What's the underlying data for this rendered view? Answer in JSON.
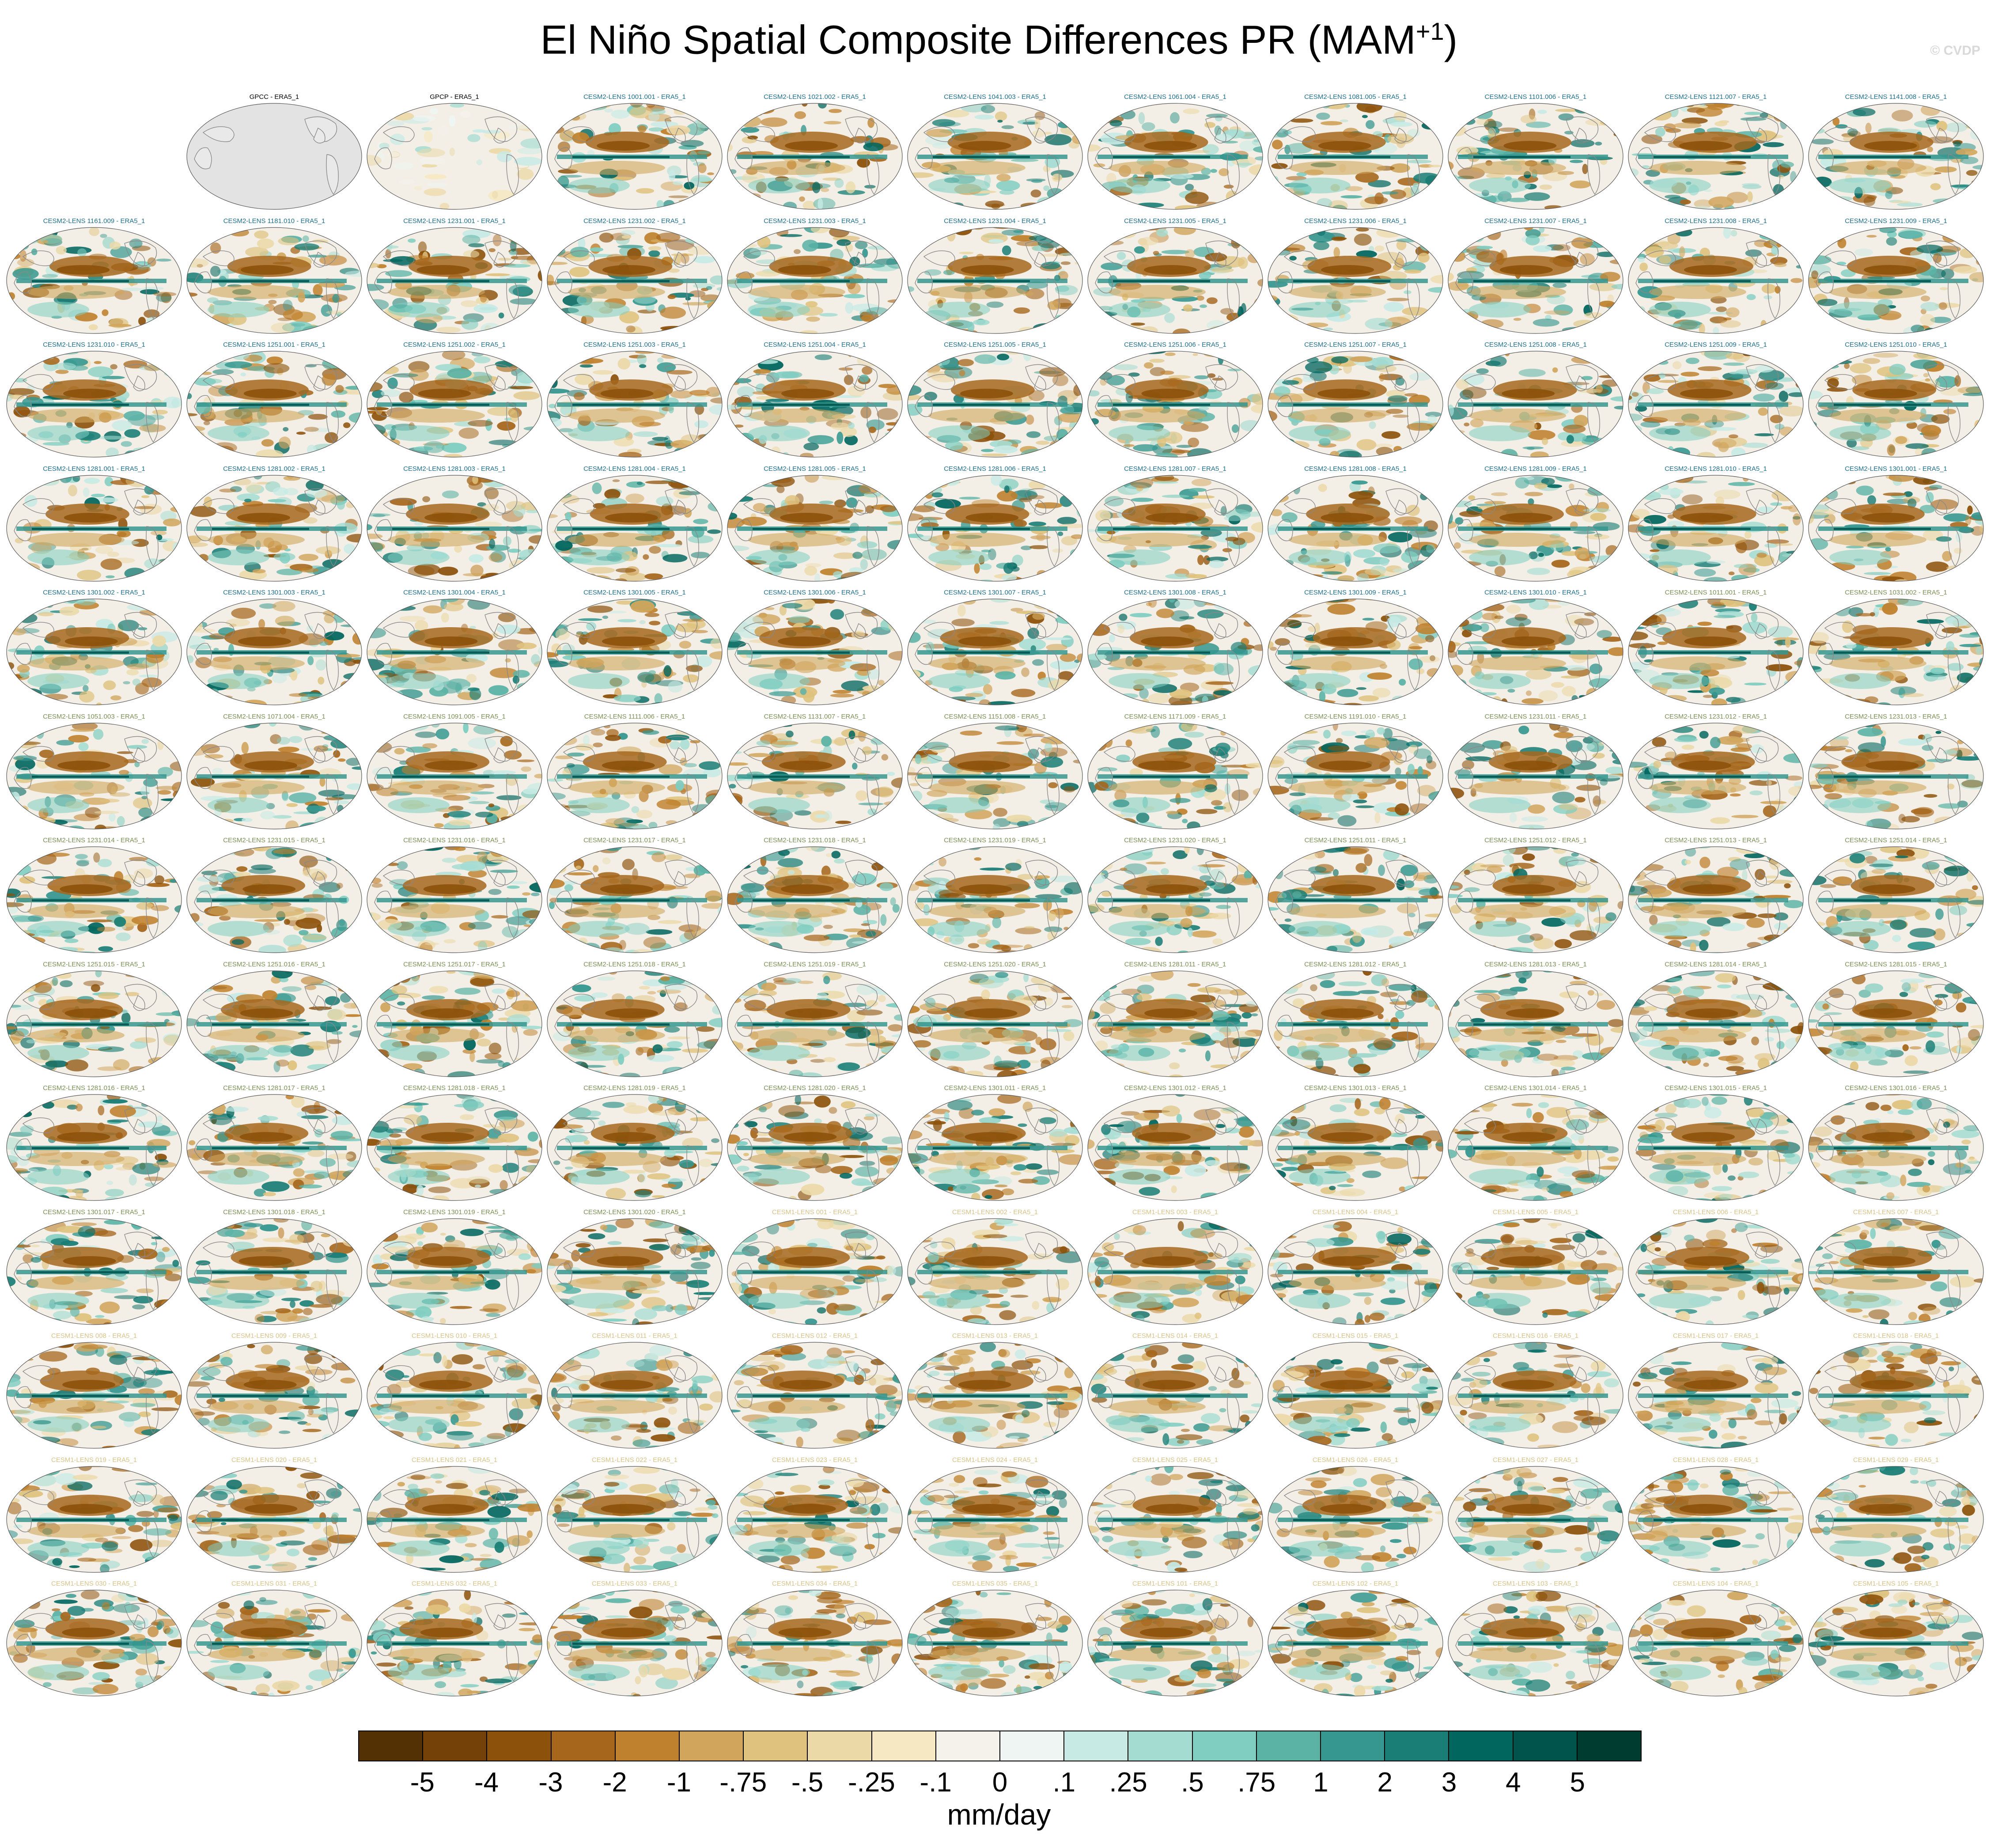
{
  "title": "El Niño Spatial Composite Differences PR (MAM",
  "title_sup": "+1",
  "title_close": ")",
  "watermark": "© CVDP",
  "colors": {
    "obs_label": "#000000",
    "cesm2_label": "#1f6f8b",
    "cesm2_alt_label": "#7a8f55",
    "cesm1_label": "#d7c38a",
    "land": "#e3e3e3",
    "ocean_neutral": "#f3efe6"
  },
  "panels": [
    {
      "label": "GPCC - ERA5_1",
      "group": "obs_land"
    },
    {
      "label": "GPCP - ERA5_1",
      "group": "obs_pale"
    },
    {
      "label": "CESM2-LENS 1001.001 - ERA5_1",
      "group": "cesm2"
    },
    {
      "label": "CESM2-LENS 1021.002 - ERA5_1",
      "group": "cesm2"
    },
    {
      "label": "CESM2-LENS 1041.003 - ERA5_1",
      "group": "cesm2"
    },
    {
      "label": "CESM2-LENS 1061.004 - ERA5_1",
      "group": "cesm2"
    },
    {
      "label": "CESM2-LENS 1081.005 - ERA5_1",
      "group": "cesm2"
    },
    {
      "label": "CESM2-LENS 1101.006 - ERA5_1",
      "group": "cesm2"
    },
    {
      "label": "CESM2-LENS 1121.007 - ERA5_1",
      "group": "cesm2"
    },
    {
      "label": "CESM2-LENS 1141.008 - ERA5_1",
      "group": "cesm2"
    },
    {
      "label": "CESM2-LENS 1161.009 - ERA5_1",
      "group": "cesm2"
    },
    {
      "label": "CESM2-LENS 1181.010 - ERA5_1",
      "group": "cesm2"
    },
    {
      "label": "CESM2-LENS 1231.001 - ERA5_1",
      "group": "cesm2"
    },
    {
      "label": "CESM2-LENS 1231.002 - ERA5_1",
      "group": "cesm2"
    },
    {
      "label": "CESM2-LENS 1231.003 - ERA5_1",
      "group": "cesm2"
    },
    {
      "label": "CESM2-LENS 1231.004 - ERA5_1",
      "group": "cesm2"
    },
    {
      "label": "CESM2-LENS 1231.005 - ERA5_1",
      "group": "cesm2"
    },
    {
      "label": "CESM2-LENS 1231.006 - ERA5_1",
      "group": "cesm2"
    },
    {
      "label": "CESM2-LENS 1231.007 - ERA5_1",
      "group": "cesm2"
    },
    {
      "label": "CESM2-LENS 1231.008 - ERA5_1",
      "group": "cesm2"
    },
    {
      "label": "CESM2-LENS 1231.009 - ERA5_1",
      "group": "cesm2"
    },
    {
      "label": "CESM2-LENS 1231.010 - ERA5_1",
      "group": "cesm2"
    },
    {
      "label": "CESM2-LENS 1251.001 - ERA5_1",
      "group": "cesm2"
    },
    {
      "label": "CESM2-LENS 1251.002 - ERA5_1",
      "group": "cesm2"
    },
    {
      "label": "CESM2-LENS 1251.003 - ERA5_1",
      "group": "cesm2"
    },
    {
      "label": "CESM2-LENS 1251.004 - ERA5_1",
      "group": "cesm2"
    },
    {
      "label": "CESM2-LENS 1251.005 - ERA5_1",
      "group": "cesm2"
    },
    {
      "label": "CESM2-LENS 1251.006 - ERA5_1",
      "group": "cesm2"
    },
    {
      "label": "CESM2-LENS 1251.007 - ERA5_1",
      "group": "cesm2"
    },
    {
      "label": "CESM2-LENS 1251.008 - ERA5_1",
      "group": "cesm2"
    },
    {
      "label": "CESM2-LENS 1251.009 - ERA5_1",
      "group": "cesm2"
    },
    {
      "label": "CESM2-LENS 1251.010 - ERA5_1",
      "group": "cesm2"
    },
    {
      "label": "CESM2-LENS 1281.001 - ERA5_1",
      "group": "cesm2"
    },
    {
      "label": "CESM2-LENS 1281.002 - ERA5_1",
      "group": "cesm2"
    },
    {
      "label": "CESM2-LENS 1281.003 - ERA5_1",
      "group": "cesm2"
    },
    {
      "label": "CESM2-LENS 1281.004 - ERA5_1",
      "group": "cesm2"
    },
    {
      "label": "CESM2-LENS 1281.005 - ERA5_1",
      "group": "cesm2"
    },
    {
      "label": "CESM2-LENS 1281.006 - ERA5_1",
      "group": "cesm2"
    },
    {
      "label": "CESM2-LENS 1281.007 - ERA5_1",
      "group": "cesm2"
    },
    {
      "label": "CESM2-LENS 1281.008 - ERA5_1",
      "group": "cesm2"
    },
    {
      "label": "CESM2-LENS 1281.009 - ERA5_1",
      "group": "cesm2"
    },
    {
      "label": "CESM2-LENS 1281.010 - ERA5_1",
      "group": "cesm2"
    },
    {
      "label": "CESM2-LENS 1301.001 - ERA5_1",
      "group": "cesm2"
    },
    {
      "label": "CESM2-LENS 1301.002 - ERA5_1",
      "group": "cesm2"
    },
    {
      "label": "CESM2-LENS 1301.003 - ERA5_1",
      "group": "cesm2"
    },
    {
      "label": "CESM2-LENS 1301.004 - ERA5_1",
      "group": "cesm2"
    },
    {
      "label": "CESM2-LENS 1301.005 - ERA5_1",
      "group": "cesm2"
    },
    {
      "label": "CESM2-LENS 1301.006 - ERA5_1",
      "group": "cesm2"
    },
    {
      "label": "CESM2-LENS 1301.007 - ERA5_1",
      "group": "cesm2"
    },
    {
      "label": "CESM2-LENS 1301.008 - ERA5_1",
      "group": "cesm2"
    },
    {
      "label": "CESM2-LENS 1301.009 - ERA5_1",
      "group": "cesm2"
    },
    {
      "label": "CESM2-LENS 1301.010 - ERA5_1",
      "group": "cesm2"
    },
    {
      "label": "CESM2-LENS 1011.001 - ERA5_1",
      "group": "cesm2_alt"
    },
    {
      "label": "CESM2-LENS 1031.002 - ERA5_1",
      "group": "cesm2_alt"
    },
    {
      "label": "CESM2-LENS 1051.003 - ERA5_1",
      "group": "cesm2_alt"
    },
    {
      "label": "CESM2-LENS 1071.004 - ERA5_1",
      "group": "cesm2_alt"
    },
    {
      "label": "CESM2-LENS 1091.005 - ERA5_1",
      "group": "cesm2_alt"
    },
    {
      "label": "CESM2-LENS 1111.006 - ERA5_1",
      "group": "cesm2_alt"
    },
    {
      "label": "CESM2-LENS 1131.007 - ERA5_1",
      "group": "cesm2_alt"
    },
    {
      "label": "CESM2-LENS 1151.008 - ERA5_1",
      "group": "cesm2_alt"
    },
    {
      "label": "CESM2-LENS 1171.009 - ERA5_1",
      "group": "cesm2_alt"
    },
    {
      "label": "CESM2-LENS 1191.010 - ERA5_1",
      "group": "cesm2_alt"
    },
    {
      "label": "CESM2-LENS 1231.011 - ERA5_1",
      "group": "cesm2_alt"
    },
    {
      "label": "CESM2-LENS 1231.012 - ERA5_1",
      "group": "cesm2_alt"
    },
    {
      "label": "CESM2-LENS 1231.013 - ERA5_1",
      "group": "cesm2_alt"
    },
    {
      "label": "CESM2-LENS 1231.014 - ERA5_1",
      "group": "cesm2_alt"
    },
    {
      "label": "CESM2-LENS 1231.015 - ERA5_1",
      "group": "cesm2_alt"
    },
    {
      "label": "CESM2-LENS 1231.016 - ERA5_1",
      "group": "cesm2_alt"
    },
    {
      "label": "CESM2-LENS 1231.017 - ERA5_1",
      "group": "cesm2_alt"
    },
    {
      "label": "CESM2-LENS 1231.018 - ERA5_1",
      "group": "cesm2_alt"
    },
    {
      "label": "CESM2-LENS 1231.019 - ERA5_1",
      "group": "cesm2_alt"
    },
    {
      "label": "CESM2-LENS 1231.020 - ERA5_1",
      "group": "cesm2_alt"
    },
    {
      "label": "CESM2-LENS 1251.011 - ERA5_1",
      "group": "cesm2_alt"
    },
    {
      "label": "CESM2-LENS 1251.012 - ERA5_1",
      "group": "cesm2_alt"
    },
    {
      "label": "CESM2-LENS 1251.013 - ERA5_1",
      "group": "cesm2_alt"
    },
    {
      "label": "CESM2-LENS 1251.014 - ERA5_1",
      "group": "cesm2_alt"
    },
    {
      "label": "CESM2-LENS 1251.015 - ERA5_1",
      "group": "cesm2_alt"
    },
    {
      "label": "CESM2-LENS 1251.016 - ERA5_1",
      "group": "cesm2_alt"
    },
    {
      "label": "CESM2-LENS 1251.017 - ERA5_1",
      "group": "cesm2_alt"
    },
    {
      "label": "CESM2-LENS 1251.018 - ERA5_1",
      "group": "cesm2_alt"
    },
    {
      "label": "CESM2-LENS 1251.019 - ERA5_1",
      "group": "cesm2_alt"
    },
    {
      "label": "CESM2-LENS 1251.020 - ERA5_1",
      "group": "cesm2_alt"
    },
    {
      "label": "CESM2-LENS 1281.011 - ERA5_1",
      "group": "cesm2_alt"
    },
    {
      "label": "CESM2-LENS 1281.012 - ERA5_1",
      "group": "cesm2_alt"
    },
    {
      "label": "CESM2-LENS 1281.013 - ERA5_1",
      "group": "cesm2_alt"
    },
    {
      "label": "CESM2-LENS 1281.014 - ERA5_1",
      "group": "cesm2_alt"
    },
    {
      "label": "CESM2-LENS 1281.015 - ERA5_1",
      "group": "cesm2_alt"
    },
    {
      "label": "CESM2-LENS 1281.016 - ERA5_1",
      "group": "cesm2_alt"
    },
    {
      "label": "CESM2-LENS 1281.017 - ERA5_1",
      "group": "cesm2_alt"
    },
    {
      "label": "CESM2-LENS 1281.018 - ERA5_1",
      "group": "cesm2_alt"
    },
    {
      "label": "CESM2-LENS 1281.019 - ERA5_1",
      "group": "cesm2_alt"
    },
    {
      "label": "CESM2-LENS 1281.020 - ERA5_1",
      "group": "cesm2_alt"
    },
    {
      "label": "CESM2-LENS 1301.011 - ERA5_1",
      "group": "cesm2_alt"
    },
    {
      "label": "CESM2-LENS 1301.012 - ERA5_1",
      "group": "cesm2_alt"
    },
    {
      "label": "CESM2-LENS 1301.013 - ERA5_1",
      "group": "cesm2_alt"
    },
    {
      "label": "CESM2-LENS 1301.014 - ERA5_1",
      "group": "cesm2_alt"
    },
    {
      "label": "CESM2-LENS 1301.015 - ERA5_1",
      "group": "cesm2_alt"
    },
    {
      "label": "CESM2-LENS 1301.016 - ERA5_1",
      "group": "cesm2_alt"
    },
    {
      "label": "CESM2-LENS 1301.017 - ERA5_1",
      "group": "cesm2_alt"
    },
    {
      "label": "CESM2-LENS 1301.018 - ERA5_1",
      "group": "cesm2_alt"
    },
    {
      "label": "CESM2-LENS 1301.019 - ERA5_1",
      "group": "cesm2_alt"
    },
    {
      "label": "CESM2-LENS 1301.020 - ERA5_1",
      "group": "cesm2_alt"
    },
    {
      "label": "CESM1-LENS 001 - ERA5_1",
      "group": "cesm1"
    },
    {
      "label": "CESM1-LENS 002 - ERA5_1",
      "group": "cesm1"
    },
    {
      "label": "CESM1-LENS 003 - ERA5_1",
      "group": "cesm1"
    },
    {
      "label": "CESM1-LENS 004 - ERA5_1",
      "group": "cesm1"
    },
    {
      "label": "CESM1-LENS 005 - ERA5_1",
      "group": "cesm1"
    },
    {
      "label": "CESM1-LENS 006 - ERA5_1",
      "group": "cesm1"
    },
    {
      "label": "CESM1-LENS 007 - ERA5_1",
      "group": "cesm1"
    },
    {
      "label": "CESM1-LENS 008 - ERA5_1",
      "group": "cesm1"
    },
    {
      "label": "CESM1-LENS 009 - ERA5_1",
      "group": "cesm1"
    },
    {
      "label": "CESM1-LENS 010 - ERA5_1",
      "group": "cesm1"
    },
    {
      "label": "CESM1-LENS 011 - ERA5_1",
      "group": "cesm1"
    },
    {
      "label": "CESM1-LENS 012 - ERA5_1",
      "group": "cesm1"
    },
    {
      "label": "CESM1-LENS 013 - ERA5_1",
      "group": "cesm1"
    },
    {
      "label": "CESM1-LENS 014 - ERA5_1",
      "group": "cesm1"
    },
    {
      "label": "CESM1-LENS 015 - ERA5_1",
      "group": "cesm1"
    },
    {
      "label": "CESM1-LENS 016 - ERA5_1",
      "group": "cesm1"
    },
    {
      "label": "CESM1-LENS 017 - ERA5_1",
      "group": "cesm1"
    },
    {
      "label": "CESM1-LENS 018 - ERA5_1",
      "group": "cesm1"
    },
    {
      "label": "CESM1-LENS 019 - ERA5_1",
      "group": "cesm1"
    },
    {
      "label": "CESM1-LENS 020 - ERA5_1",
      "group": "cesm1"
    },
    {
      "label": "CESM1-LENS 021 - ERA5_1",
      "group": "cesm1"
    },
    {
      "label": "CESM1-LENS 022 - ERA5_1",
      "group": "cesm1"
    },
    {
      "label": "CESM1-LENS 023 - ERA5_1",
      "group": "cesm1"
    },
    {
      "label": "CESM1-LENS 024 - ERA5_1",
      "group": "cesm1"
    },
    {
      "label": "CESM1-LENS 025 - ERA5_1",
      "group": "cesm1"
    },
    {
      "label": "CESM1-LENS 026 - ERA5_1",
      "group": "cesm1"
    },
    {
      "label": "CESM1-LENS 027 - ERA5_1",
      "group": "cesm1"
    },
    {
      "label": "CESM1-LENS 028 - ERA5_1",
      "group": "cesm1"
    },
    {
      "label": "CESM1-LENS 029 - ERA5_1",
      "group": "cesm1"
    },
    {
      "label": "CESM1-LENS 030 - ERA5_1",
      "group": "cesm1"
    },
    {
      "label": "CESM1-LENS 031 - ERA5_1",
      "group": "cesm1"
    },
    {
      "label": "CESM1-LENS 032 - ERA5_1",
      "group": "cesm1"
    },
    {
      "label": "CESM1-LENS 033 - ERA5_1",
      "group": "cesm1"
    },
    {
      "label": "CESM1-LENS 034 - ERA5_1",
      "group": "cesm1"
    },
    {
      "label": "CESM1-LENS 035 - ERA5_1",
      "group": "cesm1"
    },
    {
      "label": "CESM1-LENS 101 - ERA5_1",
      "group": "cesm1"
    },
    {
      "label": "CESM1-LENS 102 - ERA5_1",
      "group": "cesm1"
    },
    {
      "label": "CESM1-LENS 103 - ERA5_1",
      "group": "cesm1"
    },
    {
      "label": "CESM1-LENS 104 - ERA5_1",
      "group": "cesm1"
    },
    {
      "label": "CESM1-LENS 105 - ERA5_1",
      "group": "cesm1"
    }
  ],
  "colorbar": {
    "units": "mm/day",
    "colors": [
      "#543005",
      "#744208",
      "#8c510a",
      "#a6671d",
      "#bf812d",
      "#d1a55c",
      "#dfc27d",
      "#ecd9a8",
      "#f6e8c3",
      "#f5f2ec",
      "#eef5f2",
      "#c7eae5",
      "#a4dcd2",
      "#80cdc1",
      "#5bb3a6",
      "#35978f",
      "#1a7e76",
      "#01665e",
      "#00544c",
      "#003c30"
    ],
    "labels": [
      "-5",
      "-4",
      "-3",
      "-2",
      "-1",
      "-.75",
      "-.5",
      "-.25",
      "-.1",
      "0",
      ".1",
      ".25",
      ".5",
      ".75",
      "1",
      "2",
      "3",
      "4",
      "5"
    ]
  }
}
